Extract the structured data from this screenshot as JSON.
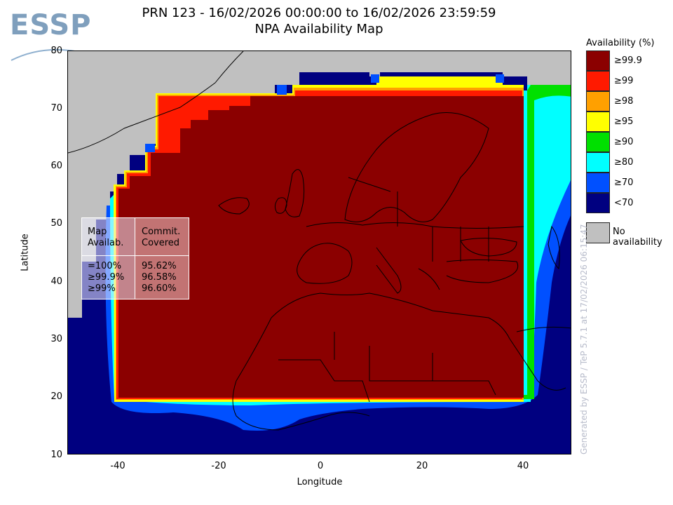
{
  "logo": {
    "text": "ESSP"
  },
  "title": {
    "line1": "PRN 123 - 16/02/2026 00:00:00 to 16/02/2026 23:59:59",
    "line2": "NPA Availability Map"
  },
  "axes": {
    "xlabel": "Longitude",
    "ylabel": "Latitude",
    "xlim": [
      -50,
      50
    ],
    "ylim": [
      10,
      80
    ],
    "xticks": [
      "-40",
      "-20",
      "0",
      "20",
      "40"
    ],
    "yticks": [
      "80",
      "70",
      "60",
      "50",
      "40",
      "30",
      "20",
      "10"
    ]
  },
  "info_box": {
    "col1_header": [
      "Map",
      "Availab."
    ],
    "col2_header": [
      "Commit.",
      "Covered"
    ],
    "rows": [
      {
        "map": "=100%",
        "covered": "95.62%"
      },
      {
        "map": "≥99.9%",
        "covered": "96.58%"
      },
      {
        "map": "≥99%",
        "covered": "96.60%"
      }
    ]
  },
  "legend": {
    "title": "Availability (%)",
    "items": [
      {
        "label": "≥99.9",
        "color": "#8b0000"
      },
      {
        "label": "≥99",
        "color": "#ff1a00"
      },
      {
        "label": "≥98",
        "color": "#ffa000"
      },
      {
        "label": "≥95",
        "color": "#ffff00"
      },
      {
        "label": "≥90",
        "color": "#00e000"
      },
      {
        "label": "≥80",
        "color": "#00ffff"
      },
      {
        "label": "≥70",
        "color": "#0050ff"
      },
      {
        "label": "<70",
        "color": "#000080"
      }
    ],
    "no_availability": {
      "label": "No availability",
      "color": "#c0c0c0"
    }
  },
  "credit": "Generated by ESSP / TeP 5.7.1 at 17/02/2026 06:15:47"
}
